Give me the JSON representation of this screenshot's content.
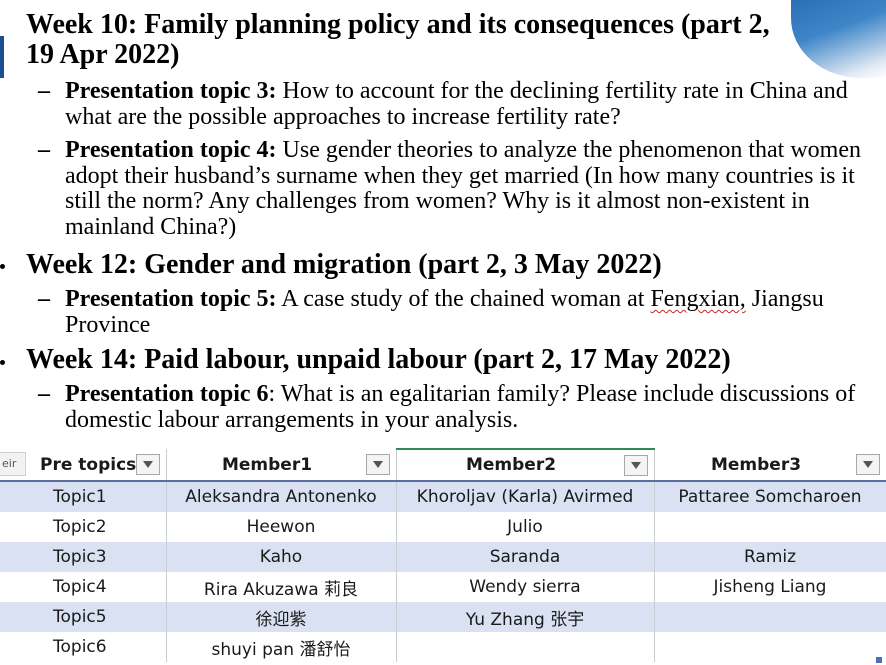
{
  "slide": {
    "weeks": [
      {
        "heading_line1": "Week 10: Family planning policy and its consequences (part 2,",
        "heading_line2": "19 Apr 2022)",
        "topics": [
          {
            "label": "Presentation topic 3:",
            "text": " How to account for the declining fertility rate in China and what are the possible approaches to increase fertility rate?"
          },
          {
            "label": "Presentation topic 4:",
            "text": " Use gender theories to analyze the phenomenon that women adopt their husband’s surname when they get married (In how many countries is it still the norm? Any challenges from women? Why is it almost non-existent in mainland China?)"
          }
        ]
      },
      {
        "heading_line1": "Week 12: Gender and migration (part 2, 3 May 2022)",
        "topics": [
          {
            "label": "Presentation topic 5:",
            "text_before": " A case study of the chained woman at ",
            "text_underlined": "Fengxian,",
            "text_after": " Jiangsu Province"
          }
        ]
      },
      {
        "heading_line1": "Week 14: Paid labour, unpaid labour (part 2, 17 May 2022)",
        "topics": [
          {
            "label": "Presentation topic 6",
            "text": ": What is an egalitarian family? Please include discussions of domestic labour arrangements in your analysis."
          }
        ]
      }
    ],
    "dash": "–"
  },
  "sheet": {
    "side_tip": "eir",
    "headers": [
      "Pre topics",
      "Member1",
      "Member2",
      "Member3"
    ],
    "rows": [
      [
        "Topic1",
        "Aleksandra Antonenko",
        "Khoroljav (Karla) Avirmed",
        "Pattaree Somcharoen"
      ],
      [
        "Topic2",
        "Heewon",
        "Julio",
        ""
      ],
      [
        "Topic3",
        "Kaho",
        "Saranda",
        "Ramiz"
      ],
      [
        "Topic4",
        "Rira Akuzawa 莉良",
        "Wendy sierra",
        "Jisheng Liang"
      ],
      [
        "Topic5",
        "徐迎紫",
        "Yu Zhang 张宇",
        ""
      ],
      [
        "Topic6",
        "shuyi pan 潘舒怡",
        "",
        ""
      ]
    ]
  },
  "colors": {
    "band": "#d9e1f2",
    "selection": "#2e8b57",
    "accent_blue": "#2a6fb5"
  }
}
